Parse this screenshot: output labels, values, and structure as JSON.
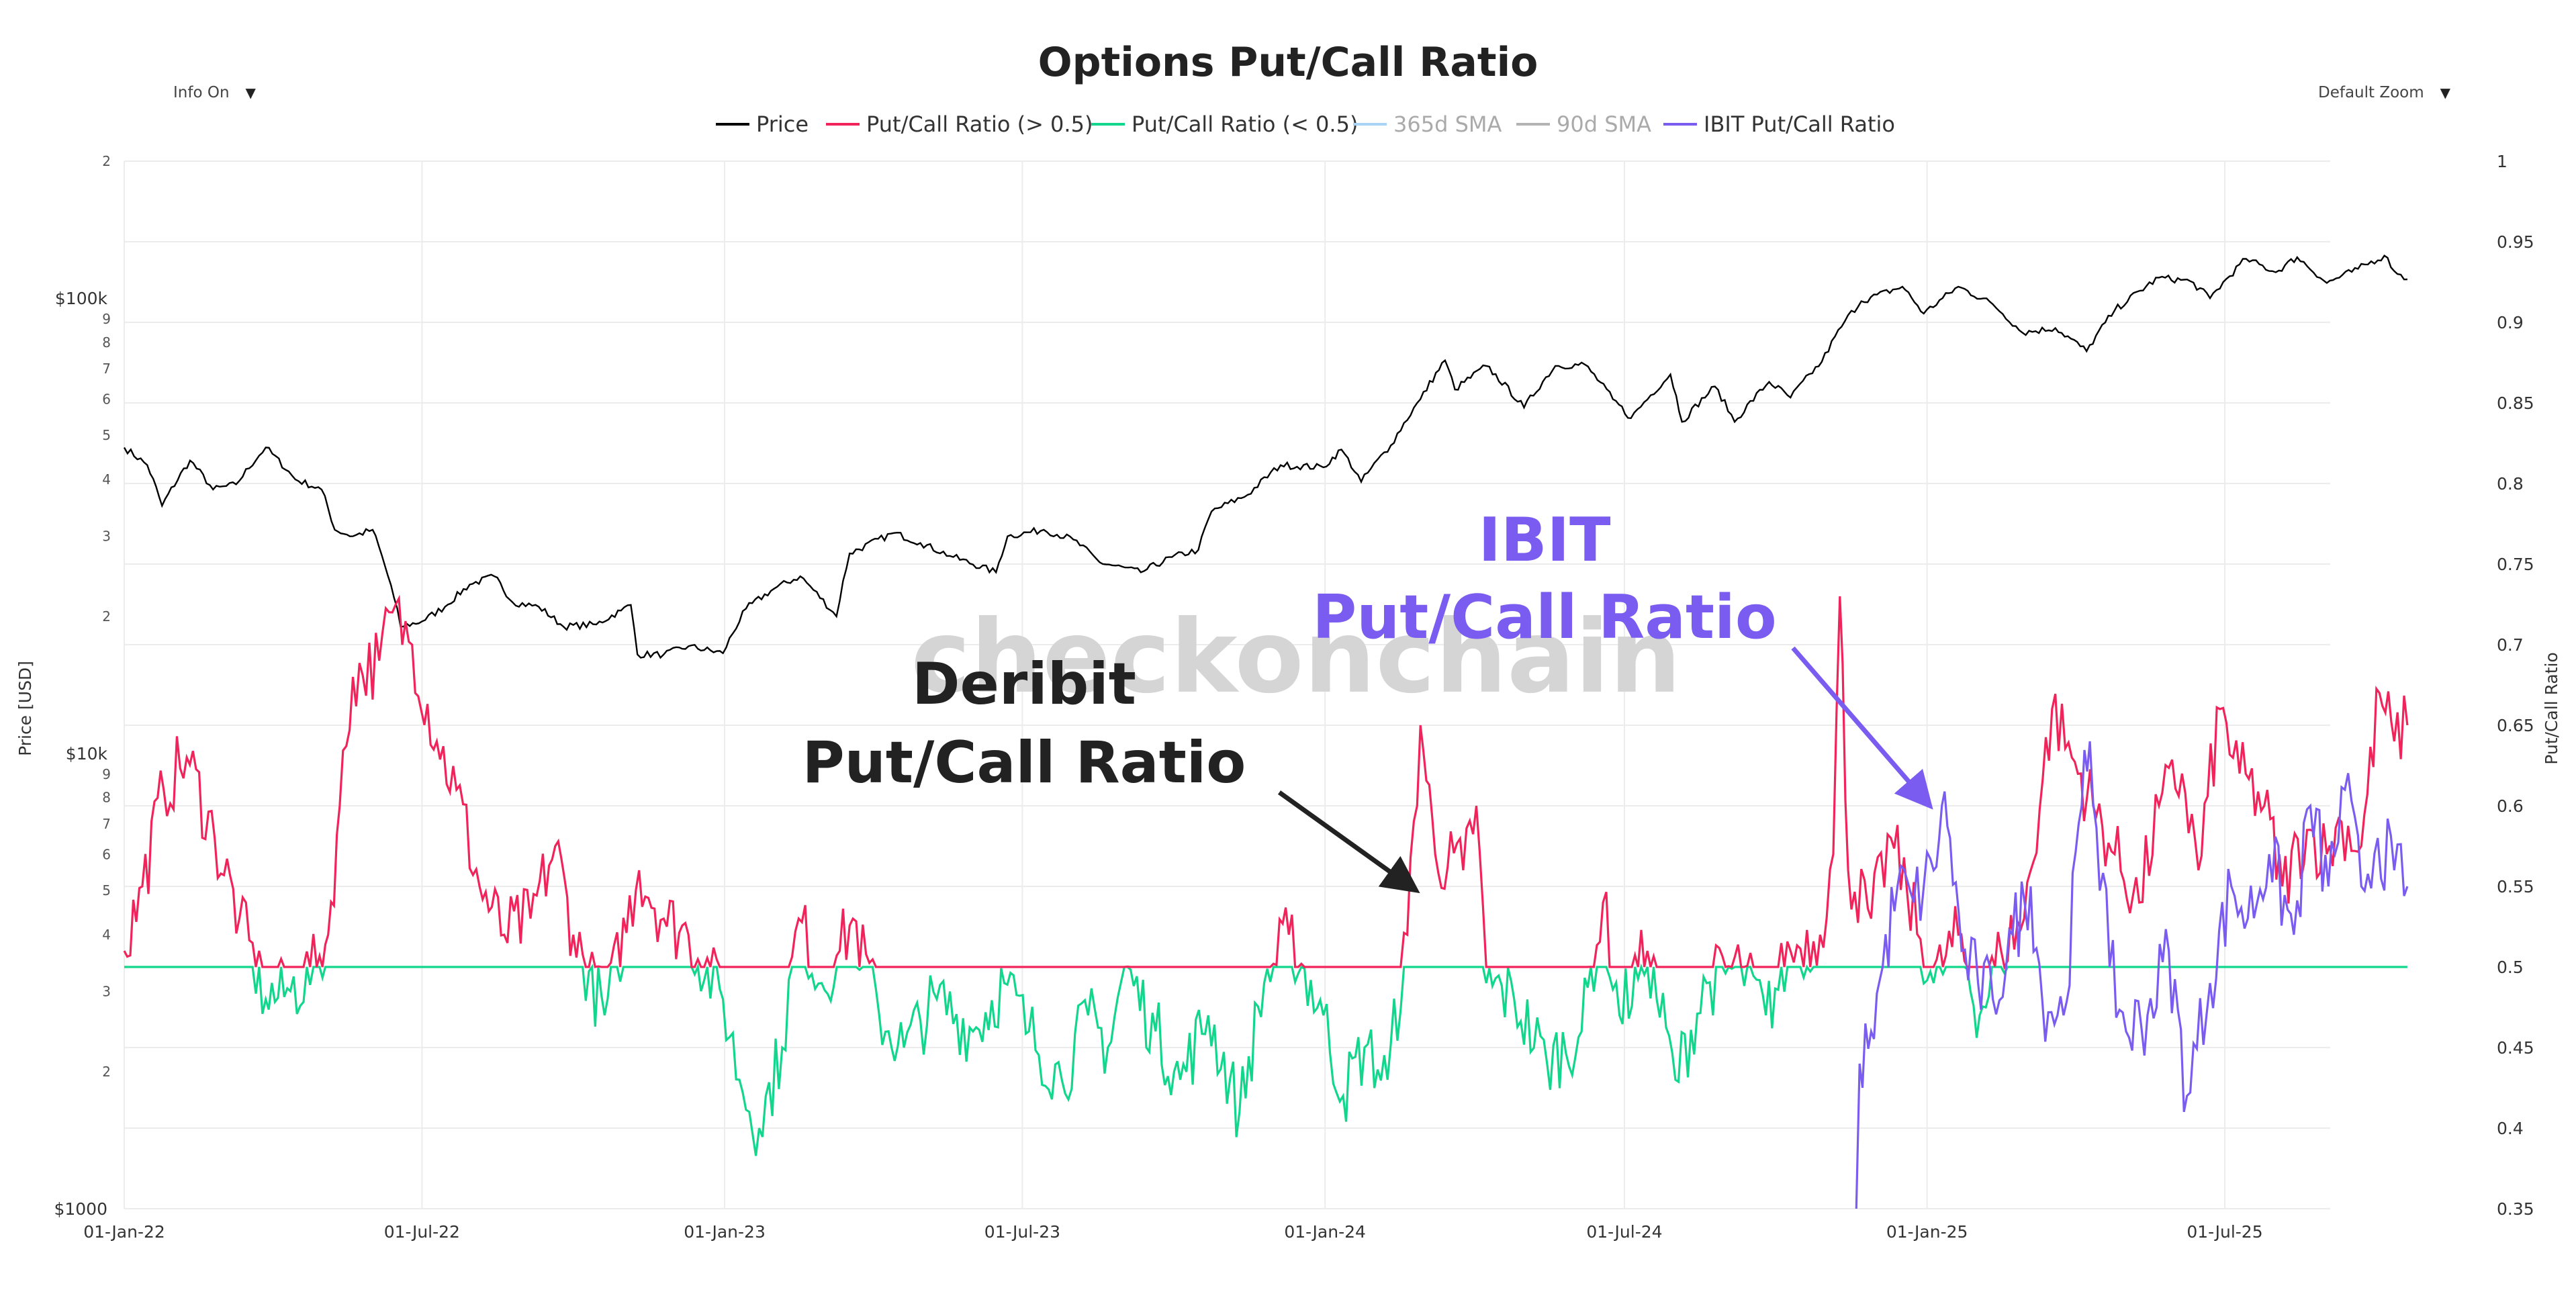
{
  "page": {
    "title": "Options Put/Call Ratio",
    "controls": {
      "info_toggle": "Info On",
      "zoom_select": "Default Zoom"
    }
  },
  "colors": {
    "price": "#000000",
    "pcr_high": "#f0245a",
    "pcr_low": "#12d68c",
    "sma365": "#a9d4f5",
    "sma90": "#b3b3b3",
    "ibit": "#7b5cf0",
    "grid": "#ececec",
    "watermark": "#d5d5d5",
    "anno_dark": "#222222",
    "anno_purple": "#7b5cf0"
  },
  "chart_data": {
    "type": "line",
    "title": "Options Put/Call Ratio",
    "watermark": "checkonchain",
    "x_axis": {
      "range": [
        "2022-01-01",
        "2025-10-20"
      ],
      "ticks": [
        "01-Jan-22",
        "01-Jul-22",
        "01-Jan-23",
        "01-Jul-23",
        "01-Jan-24",
        "01-Jul-24",
        "01-Jan-25",
        "01-Jul-25"
      ],
      "tick_dates": [
        "2022-01-01",
        "2022-07-01",
        "2023-01-01",
        "2023-07-01",
        "2024-01-01",
        "2024-07-01",
        "2025-01-01",
        "2025-07-01"
      ]
    },
    "y_left": {
      "label": "Price [USD]",
      "scale": "log",
      "range": [
        1000,
        200000
      ],
      "major_ticks": [
        {
          "v": 1000,
          "t": "$1000"
        },
        {
          "v": 10000,
          "t": "$10k"
        },
        {
          "v": 100000,
          "t": "$100k"
        }
      ],
      "minor_ticks": [
        {
          "v": 2000,
          "t": "2"
        },
        {
          "v": 3000,
          "t": "3"
        },
        {
          "v": 4000,
          "t": "4"
        },
        {
          "v": 5000,
          "t": "5"
        },
        {
          "v": 6000,
          "t": "6"
        },
        {
          "v": 7000,
          "t": "7"
        },
        {
          "v": 8000,
          "t": "8"
        },
        {
          "v": 9000,
          "t": "9"
        },
        {
          "v": 20000,
          "t": "2"
        },
        {
          "v": 30000,
          "t": "3"
        },
        {
          "v": 40000,
          "t": "4"
        },
        {
          "v": 50000,
          "t": "5"
        },
        {
          "v": 60000,
          "t": "6"
        },
        {
          "v": 70000,
          "t": "7"
        },
        {
          "v": 80000,
          "t": "8"
        },
        {
          "v": 90000,
          "t": "9"
        },
        {
          "v": 200000,
          "t": "2"
        }
      ]
    },
    "y_right": {
      "label": "Put/Call Ratio",
      "range": [
        0.35,
        1
      ],
      "ticks": [
        "0.35",
        "0.4",
        "0.45",
        "0.5",
        "0.55",
        "0.6",
        "0.65",
        "0.7",
        "0.75",
        "0.8",
        "0.85",
        "0.9",
        "0.95",
        "1"
      ]
    },
    "legend": [
      {
        "name": "Price",
        "color": "#000000",
        "active": true
      },
      {
        "name": "Put/Call Ratio (> 0.5)",
        "color": "#f0245a",
        "active": true
      },
      {
        "name": "Put/Call Ratio (< 0.5)",
        "color": "#12d68c",
        "active": true
      },
      {
        "name": "365d SMA",
        "color": "#a9d4f5",
        "active": false
      },
      {
        "name": "90d SMA",
        "color": "#b3b3b3",
        "active": false
      },
      {
        "name": "IBIT Put/Call Ratio",
        "color": "#7b5cf0",
        "active": true
      }
    ],
    "series": [
      {
        "name": "Price",
        "axis": "left",
        "points": [
          [
            "2022-01-01",
            47000
          ],
          [
            "2022-01-15",
            43000
          ],
          [
            "2022-01-24",
            35000
          ],
          [
            "2022-02-10",
            44000
          ],
          [
            "2022-02-24",
            38000
          ],
          [
            "2022-03-10",
            39000
          ],
          [
            "2022-03-28",
            47000
          ],
          [
            "2022-04-15",
            40000
          ],
          [
            "2022-05-01",
            38000
          ],
          [
            "2022-05-09",
            31000
          ],
          [
            "2022-05-20",
            30000
          ],
          [
            "2022-06-01",
            31000
          ],
          [
            "2022-06-14",
            22000
          ],
          [
            "2022-06-18",
            19000
          ],
          [
            "2022-07-01",
            19500
          ],
          [
            "2022-07-15",
            21000
          ],
          [
            "2022-07-30",
            23500
          ],
          [
            "2022-08-14",
            24500
          ],
          [
            "2022-08-25",
            21500
          ],
          [
            "2022-09-10",
            21000
          ],
          [
            "2022-09-25",
            19000
          ],
          [
            "2022-10-15",
            19200
          ],
          [
            "2022-10-30",
            20600
          ],
          [
            "2022-11-05",
            21200
          ],
          [
            "2022-11-09",
            16500
          ],
          [
            "2022-11-25",
            16500
          ],
          [
            "2022-12-10",
            17200
          ],
          [
            "2022-12-31",
            16600
          ],
          [
            "2023-01-14",
            20800
          ],
          [
            "2023-01-31",
            23000
          ],
          [
            "2023-02-16",
            24500
          ],
          [
            "2023-03-10",
            20000
          ],
          [
            "2023-03-18",
            27500
          ],
          [
            "2023-04-14",
            30500
          ],
          [
            "2023-04-30",
            29000
          ],
          [
            "2023-05-20",
            27000
          ],
          [
            "2023-06-15",
            25000
          ],
          [
            "2023-06-22",
            30000
          ],
          [
            "2023-07-14",
            31000
          ],
          [
            "2023-08-01",
            29500
          ],
          [
            "2023-08-17",
            26300
          ],
          [
            "2023-09-11",
            25000
          ],
          [
            "2023-09-30",
            27000
          ],
          [
            "2023-10-16",
            28000
          ],
          [
            "2023-10-24",
            34000
          ],
          [
            "2023-11-15",
            37000
          ],
          [
            "2023-12-05",
            43000
          ],
          [
            "2023-12-31",
            42500
          ],
          [
            "2024-01-11",
            46500
          ],
          [
            "2024-01-23",
            39500
          ],
          [
            "2024-02-10",
            47500
          ],
          [
            "2024-02-28",
            60000
          ],
          [
            "2024-03-14",
            73000
          ],
          [
            "2024-03-20",
            63000
          ],
          [
            "2024-04-08",
            71000
          ],
          [
            "2024-05-01",
            57500
          ],
          [
            "2024-05-20",
            71000
          ],
          [
            "2024-06-07",
            71500
          ],
          [
            "2024-06-24",
            60000
          ],
          [
            "2024-07-05",
            54500
          ],
          [
            "2024-07-29",
            68000
          ],
          [
            "2024-08-05",
            53500
          ],
          [
            "2024-08-25",
            64000
          ],
          [
            "2024-09-06",
            53500
          ],
          [
            "2024-09-27",
            65500
          ],
          [
            "2024-10-10",
            60500
          ],
          [
            "2024-10-29",
            72500
          ],
          [
            "2024-11-12",
            89000
          ],
          [
            "2024-11-22",
            98500
          ],
          [
            "2024-12-17",
            106000
          ],
          [
            "2024-12-30",
            92500
          ],
          [
            "2025-01-20",
            106000
          ],
          [
            "2025-02-10",
            97000
          ],
          [
            "2025-02-28",
            84000
          ],
          [
            "2025-03-20",
            86000
          ],
          [
            "2025-04-08",
            76500
          ],
          [
            "2025-04-25",
            94000
          ],
          [
            "2025-05-22",
            111000
          ],
          [
            "2025-06-10",
            109000
          ],
          [
            "2025-06-22",
            100000
          ],
          [
            "2025-07-14",
            122000
          ],
          [
            "2025-08-01",
            114000
          ],
          [
            "2025-08-14",
            123000
          ],
          [
            "2025-09-01",
            108000
          ],
          [
            "2025-09-20",
            116000
          ],
          [
            "2025-10-06",
            124000
          ],
          [
            "2025-10-14",
            113000
          ],
          [
            "2025-10-20",
            110000
          ]
        ]
      },
      {
        "name": "Deribit Put/Call Ratio",
        "axis": "right",
        "threshold": 0.5,
        "points": [
          [
            "2022-01-01",
            0.51
          ],
          [
            "2022-01-12",
            0.55
          ],
          [
            "2022-01-25",
            0.61
          ],
          [
            "2022-02-08",
            0.63
          ],
          [
            "2022-02-25",
            0.58
          ],
          [
            "2022-03-12",
            0.53
          ],
          [
            "2022-03-28",
            0.48
          ],
          [
            "2022-04-12",
            0.485
          ],
          [
            "2022-04-28",
            0.5
          ],
          [
            "2022-05-05",
            0.52
          ],
          [
            "2022-05-12",
            0.6
          ],
          [
            "2022-05-20",
            0.68
          ],
          [
            "2022-06-05",
            0.69
          ],
          [
            "2022-06-13",
            0.72
          ],
          [
            "2022-06-25",
            0.7
          ],
          [
            "2022-07-10",
            0.64
          ],
          [
            "2022-07-22",
            0.61
          ],
          [
            "2022-08-05",
            0.55
          ],
          [
            "2022-08-20",
            0.52
          ],
          [
            "2022-09-05",
            0.53
          ],
          [
            "2022-09-20",
            0.575
          ],
          [
            "2022-10-01",
            0.52
          ],
          [
            "2022-10-20",
            0.47
          ],
          [
            "2022-11-10",
            0.56
          ],
          [
            "2022-11-25",
            0.53
          ],
          [
            "2022-12-10",
            0.52
          ],
          [
            "2022-12-31",
            0.48
          ],
          [
            "2023-01-10",
            0.43
          ],
          [
            "2023-01-22",
            0.4
          ],
          [
            "2023-02-05",
            0.45
          ],
          [
            "2023-02-15",
            0.53
          ],
          [
            "2023-03-01",
            0.49
          ],
          [
            "2023-03-12",
            0.51
          ],
          [
            "2023-03-20",
            0.53
          ],
          [
            "2023-04-05",
            0.47
          ],
          [
            "2023-04-20",
            0.45
          ],
          [
            "2023-05-10",
            0.48
          ],
          [
            "2023-06-01",
            0.46
          ],
          [
            "2023-06-20",
            0.49
          ],
          [
            "2023-07-05",
            0.46
          ],
          [
            "2023-07-25",
            0.43
          ],
          [
            "2023-08-10",
            0.47
          ],
          [
            "2023-08-22",
            0.45
          ],
          [
            "2023-09-01",
            0.5
          ],
          [
            "2023-09-20",
            0.46
          ],
          [
            "2023-10-05",
            0.43
          ],
          [
            "2023-10-22",
            0.47
          ],
          [
            "2023-11-10",
            0.41
          ],
          [
            "2023-11-25",
            0.49
          ],
          [
            "2023-12-10",
            0.52
          ],
          [
            "2023-12-31",
            0.47
          ],
          [
            "2024-01-12",
            0.42
          ],
          [
            "2024-01-25",
            0.45
          ],
          [
            "2024-02-08",
            0.43
          ],
          [
            "2024-02-20",
            0.52
          ],
          [
            "2024-02-28",
            0.65
          ],
          [
            "2024-03-08",
            0.57
          ],
          [
            "2024-03-25",
            0.56
          ],
          [
            "2024-04-02",
            0.6
          ],
          [
            "2024-04-08",
            0.49
          ],
          [
            "2024-04-25",
            0.48
          ],
          [
            "2024-05-15",
            0.44
          ],
          [
            "2024-06-05",
            0.46
          ],
          [
            "2024-06-18",
            0.54
          ],
          [
            "2024-06-28",
            0.47
          ],
          [
            "2024-07-15",
            0.51
          ],
          [
            "2024-08-01",
            0.43
          ],
          [
            "2024-08-20",
            0.49
          ],
          [
            "2024-09-10",
            0.5
          ],
          [
            "2024-09-25",
            0.47
          ],
          [
            "2024-10-10",
            0.51
          ],
          [
            "2024-10-28",
            0.52
          ],
          [
            "2024-11-05",
            0.57
          ],
          [
            "2024-11-09",
            0.73
          ],
          [
            "2024-11-14",
            0.56
          ],
          [
            "2024-11-28",
            0.53
          ],
          [
            "2024-12-10",
            0.58
          ],
          [
            "2024-12-20",
            0.545
          ],
          [
            "2025-01-05",
            0.49
          ],
          [
            "2025-01-20",
            0.52
          ],
          [
            "2025-02-02",
            0.47
          ],
          [
            "2025-02-15",
            0.51
          ],
          [
            "2025-03-01",
            0.53
          ],
          [
            "2025-03-18",
            0.66
          ],
          [
            "2025-03-30",
            0.63
          ],
          [
            "2025-04-12",
            0.6
          ],
          [
            "2025-04-25",
            0.57
          ],
          [
            "2025-05-10",
            0.54
          ],
          [
            "2025-05-22",
            0.6
          ],
          [
            "2025-06-05",
            0.62
          ],
          [
            "2025-06-15",
            0.56
          ],
          [
            "2025-06-28",
            0.66
          ],
          [
            "2025-07-10",
            0.62
          ],
          [
            "2025-07-25",
            0.6
          ],
          [
            "2025-08-05",
            0.55
          ],
          [
            "2025-08-20",
            0.585
          ],
          [
            "2025-09-01",
            0.57
          ],
          [
            "2025-09-10",
            0.59
          ],
          [
            "2025-09-22",
            0.575
          ],
          [
            "2025-10-03",
            0.67
          ],
          [
            "2025-10-12",
            0.64
          ],
          [
            "2025-10-20",
            0.65
          ]
        ]
      },
      {
        "name": "IBIT Put/Call Ratio",
        "axis": "right",
        "points": [
          [
            "2024-11-19",
            0.35
          ],
          [
            "2024-11-21",
            0.44
          ],
          [
            "2024-11-28",
            0.46
          ],
          [
            "2024-12-05",
            0.5
          ],
          [
            "2024-12-14",
            0.55
          ],
          [
            "2024-12-24",
            0.54
          ],
          [
            "2025-01-05",
            0.56
          ],
          [
            "2025-01-10",
            0.6
          ],
          [
            "2025-01-15",
            0.58
          ],
          [
            "2025-01-22",
            0.51
          ],
          [
            "2025-02-01",
            0.49
          ],
          [
            "2025-02-10",
            0.48
          ],
          [
            "2025-02-22",
            0.52
          ],
          [
            "2025-03-05",
            0.55
          ],
          [
            "2025-03-12",
            0.48
          ],
          [
            "2025-03-25",
            0.47
          ],
          [
            "2025-04-05",
            0.6
          ],
          [
            "2025-04-10",
            0.64
          ],
          [
            "2025-04-22",
            0.5
          ],
          [
            "2025-05-02",
            0.46
          ],
          [
            "2025-05-15",
            0.47
          ],
          [
            "2025-05-28",
            0.51
          ],
          [
            "2025-06-08",
            0.42
          ],
          [
            "2025-06-22",
            0.49
          ],
          [
            "2025-07-05",
            0.55
          ],
          [
            "2025-07-15",
            0.53
          ],
          [
            "2025-07-28",
            0.57
          ],
          [
            "2025-08-12",
            0.52
          ],
          [
            "2025-08-22",
            0.6
          ],
          [
            "2025-09-02",
            0.55
          ],
          [
            "2025-09-12",
            0.61
          ],
          [
            "2025-09-22",
            0.55
          ],
          [
            "2025-10-02",
            0.58
          ],
          [
            "2025-10-12",
            0.56
          ],
          [
            "2025-10-20",
            0.55
          ]
        ]
      }
    ],
    "annotations": [
      {
        "lines": [
          "Deribit",
          "Put/Call Ratio"
        ],
        "color": "#222222",
        "arrow_to": [
          "2024-02-28",
          0.545
        ]
      },
      {
        "lines": [
          "IBIT",
          "Put/Call Ratio"
        ],
        "color": "#7b5cf0",
        "arrow_to": [
          "2025-01-05",
          0.6
        ]
      }
    ]
  }
}
